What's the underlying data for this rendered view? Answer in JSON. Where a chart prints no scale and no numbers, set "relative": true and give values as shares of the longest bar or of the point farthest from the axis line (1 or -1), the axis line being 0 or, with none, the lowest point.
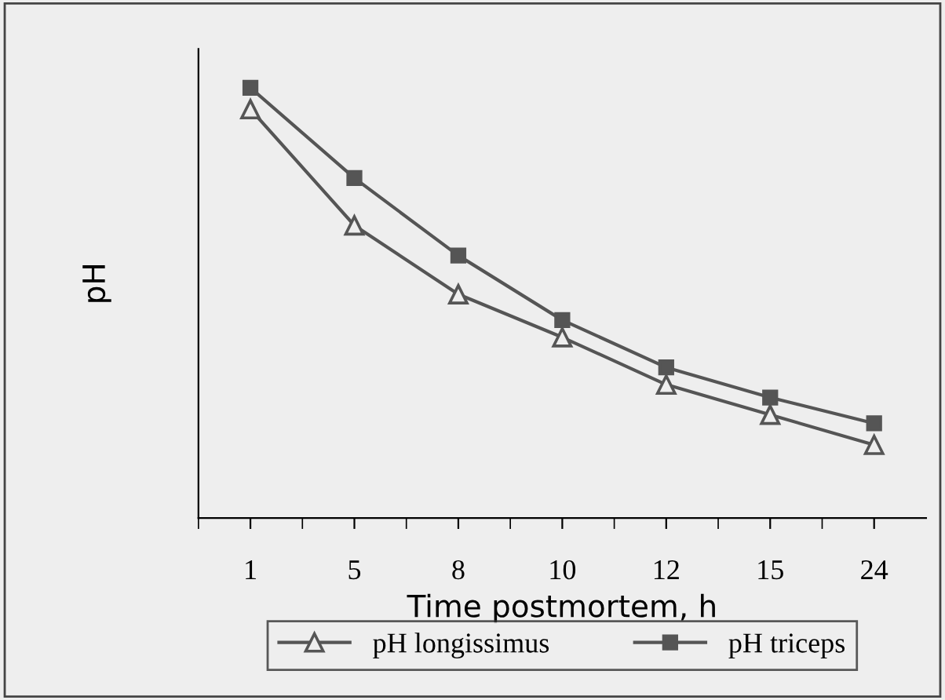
{
  "chart_data": {
    "type": "line",
    "xlabel": "Time postmortem, h",
    "ylabel": "pH",
    "relative": true,
    "categories": [
      "1",
      "5",
      "8",
      "10",
      "12",
      "15",
      "24"
    ],
    "series": [
      {
        "name": "pH longissimus",
        "color": "#555555",
        "marker": "triangle",
        "values": [
          0.95,
          0.68,
          0.52,
          0.42,
          0.31,
          0.24,
          0.17
        ]
      },
      {
        "name": "pH triceps",
        "color": "#555555",
        "marker": "square",
        "values": [
          1,
          0.79,
          0.61,
          0.46,
          0.35,
          0.28,
          0.22
        ]
      }
    ],
    "grid": false,
    "legend": "bottom",
    "line_style": "solid"
  }
}
